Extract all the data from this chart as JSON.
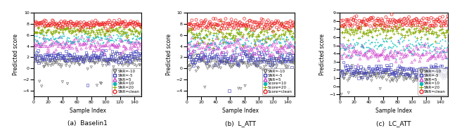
{
  "n_samples": 150,
  "seed": 42,
  "subplots": [
    {
      "title": "(a)  Baselin1",
      "ylabel": "Predicted score",
      "xlabel": "Sample Index",
      "xlim": [
        0,
        150
      ],
      "ylim": [
        -5,
        10
      ],
      "yticks": [
        -4,
        -2,
        0,
        2,
        4,
        6,
        8,
        10
      ],
      "legend_labels": [
        "SNR=-10",
        "SNR=-5",
        "SNR=5",
        "SNR=10",
        "SNR=20",
        "SNR=clean"
      ],
      "snr_means": [
        1.3,
        2.0,
        4.2,
        5.3,
        6.7,
        7.9
      ],
      "snr_stds": [
        0.55,
        0.55,
        0.6,
        0.55,
        0.45,
        0.35
      ],
      "outlier_low": [
        -2.8,
        -2.5,
        null,
        null,
        null,
        null
      ],
      "outlier_prob": [
        0.04,
        0.03,
        0.0,
        0.0,
        0.0,
        0.0
      ]
    },
    {
      "title": "(b)  L_ATT",
      "ylabel": "Predicted score",
      "xlabel": "Sample Index",
      "xlim": [
        0,
        150
      ],
      "ylim": [
        -5,
        10
      ],
      "yticks": [
        -4,
        -2,
        0,
        2,
        4,
        6,
        8,
        10
      ],
      "legend_labels": [
        "SNR=-10",
        "SNR=-5",
        "SNR=5",
        "Score=10",
        "Score=20",
        "Score=clean"
      ],
      "snr_means": [
        1.0,
        1.8,
        3.8,
        4.8,
        6.2,
        7.9
      ],
      "snr_stds": [
        0.6,
        0.65,
        0.85,
        0.85,
        0.85,
        0.5
      ],
      "outlier_low": [
        -3.8,
        -4.2,
        null,
        null,
        null,
        null
      ],
      "outlier_prob": [
        0.04,
        0.04,
        0.0,
        0.0,
        0.0,
        0.0
      ]
    },
    {
      "title": "(c)  LC_ATT",
      "ylabel": "Predicted score",
      "xlabel": "Sample Index",
      "xlim": [
        0,
        150
      ],
      "ylim": [
        -1.2,
        9
      ],
      "yticks": [
        -1,
        0,
        1,
        2,
        3,
        4,
        5,
        6,
        7,
        8,
        9
      ],
      "legend_labels": [
        "SNR=-10",
        "SNR=-5",
        "SNR=5",
        "SNR=10",
        "SNR=20",
        "SNR=clean"
      ],
      "snr_means": [
        1.3,
        1.9,
        4.0,
        5.0,
        6.8,
        7.8
      ],
      "snr_stds": [
        0.4,
        0.4,
        0.55,
        0.55,
        0.45,
        0.35
      ],
      "outlier_low": [
        -0.5,
        null,
        null,
        null,
        null,
        null
      ],
      "outlier_prob": [
        0.03,
        0.0,
        0.0,
        0.0,
        0.0,
        0.0
      ]
    }
  ],
  "colors": [
    "#666666",
    "#4040bb",
    "#cc44cc",
    "#00bbbb",
    "#88aa00",
    "#ee2222"
  ],
  "markers": [
    "v",
    "s",
    "^",
    ".",
    "+",
    "o"
  ],
  "marker_sizes": [
    6,
    6,
    6,
    8,
    10,
    8
  ]
}
